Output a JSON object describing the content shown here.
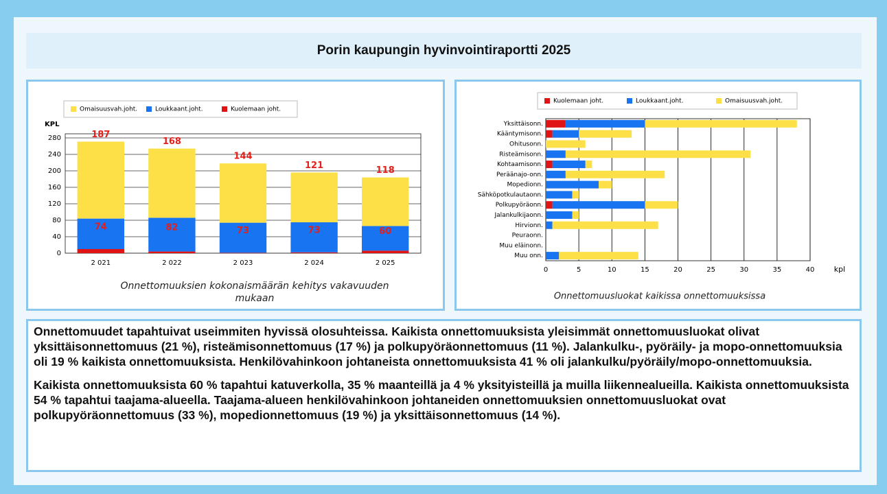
{
  "header": {
    "title": "Porin kaupungin hyvinvointiraportti 2025"
  },
  "chart_data": [
    {
      "type": "stacked-bar",
      "caption": "Onnettomuuksien kokonaismäärän kehitys vakavuuden mukaan",
      "ylabel": "KPL",
      "categories": [
        "2 021",
        "2 022",
        "2 023",
        "2 024",
        "2 025"
      ],
      "series": [
        {
          "name": "Kuolemaan joht.",
          "color": "#e01414",
          "values": [
            10,
            4,
            1,
            2,
            6
          ]
        },
        {
          "name": "Loukkaant.joht.",
          "color": "#1874f0",
          "values": [
            74,
            82,
            73,
            73,
            60
          ]
        },
        {
          "name": "Omaisuusvah.joht.",
          "color": "#fde047",
          "values": [
            187,
            168,
            144,
            121,
            118
          ]
        }
      ],
      "ylim": [
        0,
        290
      ],
      "yticks": [
        0,
        40,
        80,
        120,
        160,
        200,
        240,
        280
      ],
      "grid": true
    },
    {
      "type": "stacked-barh",
      "caption": "Onnettomuusluokat kaikissa onnettomuuksissa",
      "xlabel": "kpl",
      "categories": [
        "Yksittäisonn.",
        "Kääntymisonn.",
        "Ohitusonn.",
        "Risteämisonn.",
        "Kohtaamisonn.",
        "Peräänajo-onn.",
        "Mopedionn.",
        "Sähköpotkulautaonn.",
        "Polkupyöräonn.",
        "Jalankulkijaonn.",
        "Hirvionn.",
        "Peuraonn.",
        "Muu eläinonn.",
        "Muu onn."
      ],
      "series": [
        {
          "name": "Kuolemaan joht.",
          "color": "#e01414",
          "values": [
            3,
            1,
            0,
            0,
            1,
            0,
            0,
            0,
            1,
            0,
            0,
            0,
            0,
            0
          ]
        },
        {
          "name": "Loukkaant.joht.",
          "color": "#1874f0",
          "values": [
            12,
            4,
            0,
            3,
            5,
            3,
            8,
            4,
            14,
            4,
            1,
            0,
            0,
            2
          ]
        },
        {
          "name": "Omaisuusvah.joht.",
          "color": "#fde047",
          "values": [
            23,
            8,
            6,
            28,
            1,
            15,
            2,
            1,
            5,
            1,
            16,
            0,
            0,
            12
          ]
        }
      ],
      "xlim": [
        0,
        40
      ],
      "xticks": [
        0,
        5,
        10,
        15,
        20,
        25,
        30,
        35,
        40
      ],
      "grid": true
    }
  ],
  "paragraphs": [
    "Onnettomuudet tapahtuivat useimmiten hyvissä olosuhteissa. Kaikista onnettomuuksista yleisimmät onnettomuusluokat olivat yksittäisonnettomuus (21 %), risteämisonnettomuus (17 %) ja polkupyöräonnettomuus (11 %). Jalankulku-, pyöräily- ja mopo-onnettomuuksia oli 19 % kaikista onnettomuuksista. Henkilövahinkoon johtaneista onnettomuuksista 41 % oli jalankulku/pyöräily/mopo-onnettomuuksia.",
    "Kaikista onnettomuuksista 60 % tapahtui katuverkolla, 35 % maanteillä ja 4 % yksityisteillä ja muilla liikennealueilla. Kaikista onnettomuuksista 54 % tapahtui taajama-alueella. Taajama-alueen henkilövahinkoon johtaneiden onnettomuuksien onnettomuusluokat ovat polkupyöräonnettomuus (33 %), mopedionnettomuus (19 %) ja yksittäisonnettomuus (14 %)."
  ]
}
